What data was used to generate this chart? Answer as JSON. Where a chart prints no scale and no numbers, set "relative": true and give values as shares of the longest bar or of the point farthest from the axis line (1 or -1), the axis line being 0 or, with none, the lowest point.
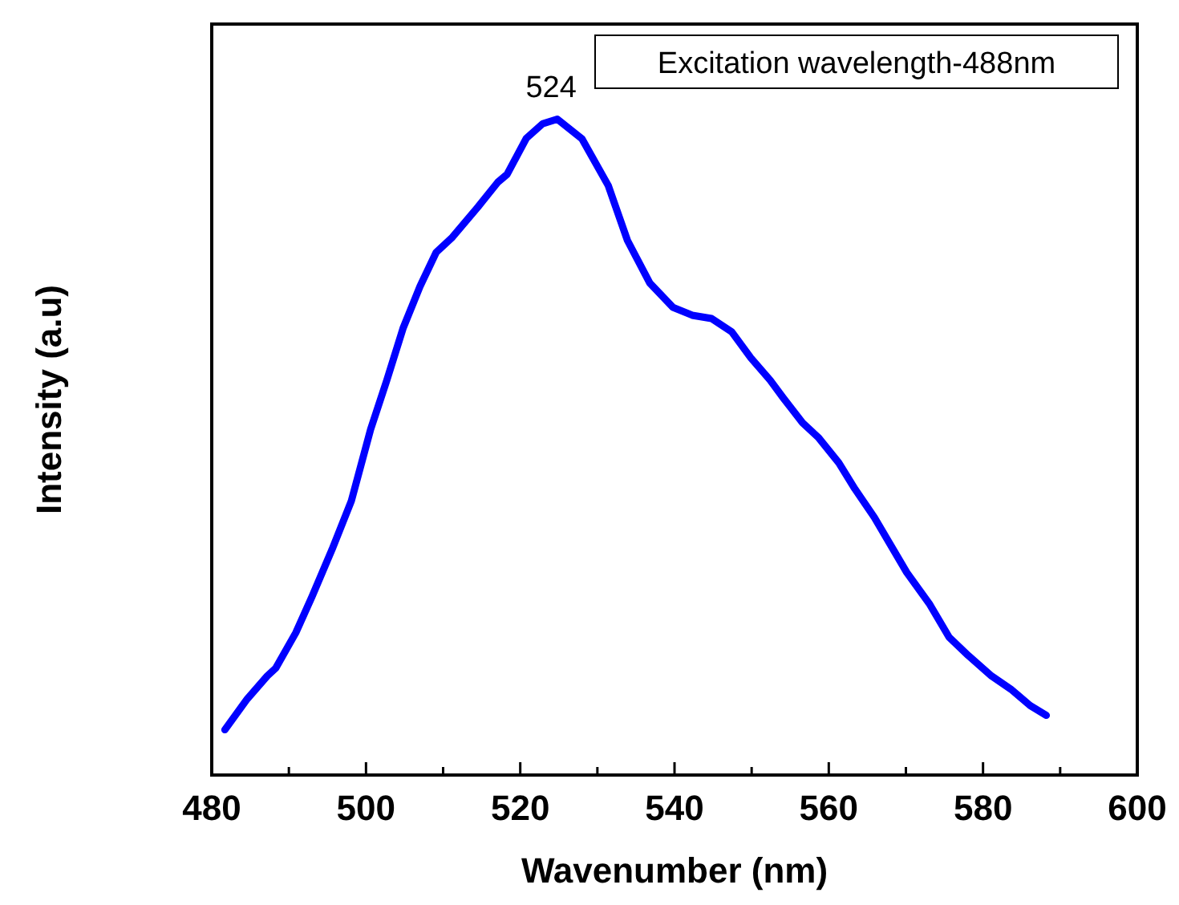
{
  "chart_data": {
    "type": "line",
    "relative": true,
    "xlabel": "Wavenumber (nm)",
    "ylabel": "Intensity (a.u)",
    "xlim": [
      480,
      600
    ],
    "xticks": [
      480,
      {
        "value": 490,
        "label": null
      },
      500,
      {
        "value": 510,
        "label": null
      },
      520,
      {
        "value": 530,
        "label": null
      },
      540,
      {
        "value": 550,
        "label": null
      },
      560,
      {
        "value": 570,
        "label": null
      },
      580,
      {
        "value": 590,
        "label": null
      },
      600
    ],
    "grid": false,
    "marker": "none",
    "line_style": "solid",
    "annotations": [
      {
        "text": "524",
        "x": 524,
        "y": 1
      },
      "Excitation wavelength-488nm"
    ],
    "series": [
      {
        "color": "#0000ff",
        "x": [
          481.7,
          484.6,
          487.2,
          488.3,
          490.9,
          493.0,
          495.6,
          498.1,
          500.6,
          502.7,
          504.8,
          507.0,
          509.1,
          511.2,
          514.5,
          517.1,
          518.3,
          520.8,
          522.9,
          524.8,
          528.0,
          531.4,
          533.9,
          536.8,
          539.8,
          542.3,
          544.8,
          547.4,
          549.9,
          552.4,
          554.1,
          556.6,
          558.7,
          561.3,
          563.4,
          565.9,
          570.1,
          573.1,
          575.6,
          578.1,
          581.1,
          583.6,
          586.1,
          588.2
        ],
        "values": [
          0.069,
          0.116,
          0.151,
          0.163,
          0.217,
          0.272,
          0.344,
          0.418,
          0.527,
          0.602,
          0.681,
          0.745,
          0.797,
          0.82,
          0.866,
          0.904,
          0.916,
          0.971,
          0.993,
          1.0,
          0.97,
          0.899,
          0.815,
          0.75,
          0.713,
          0.701,
          0.696,
          0.676,
          0.636,
          0.602,
          0.575,
          0.537,
          0.514,
          0.476,
          0.436,
          0.393,
          0.309,
          0.26,
          0.21,
          0.182,
          0.151,
          0.131,
          0.106,
          0.091
        ]
      }
    ]
  }
}
